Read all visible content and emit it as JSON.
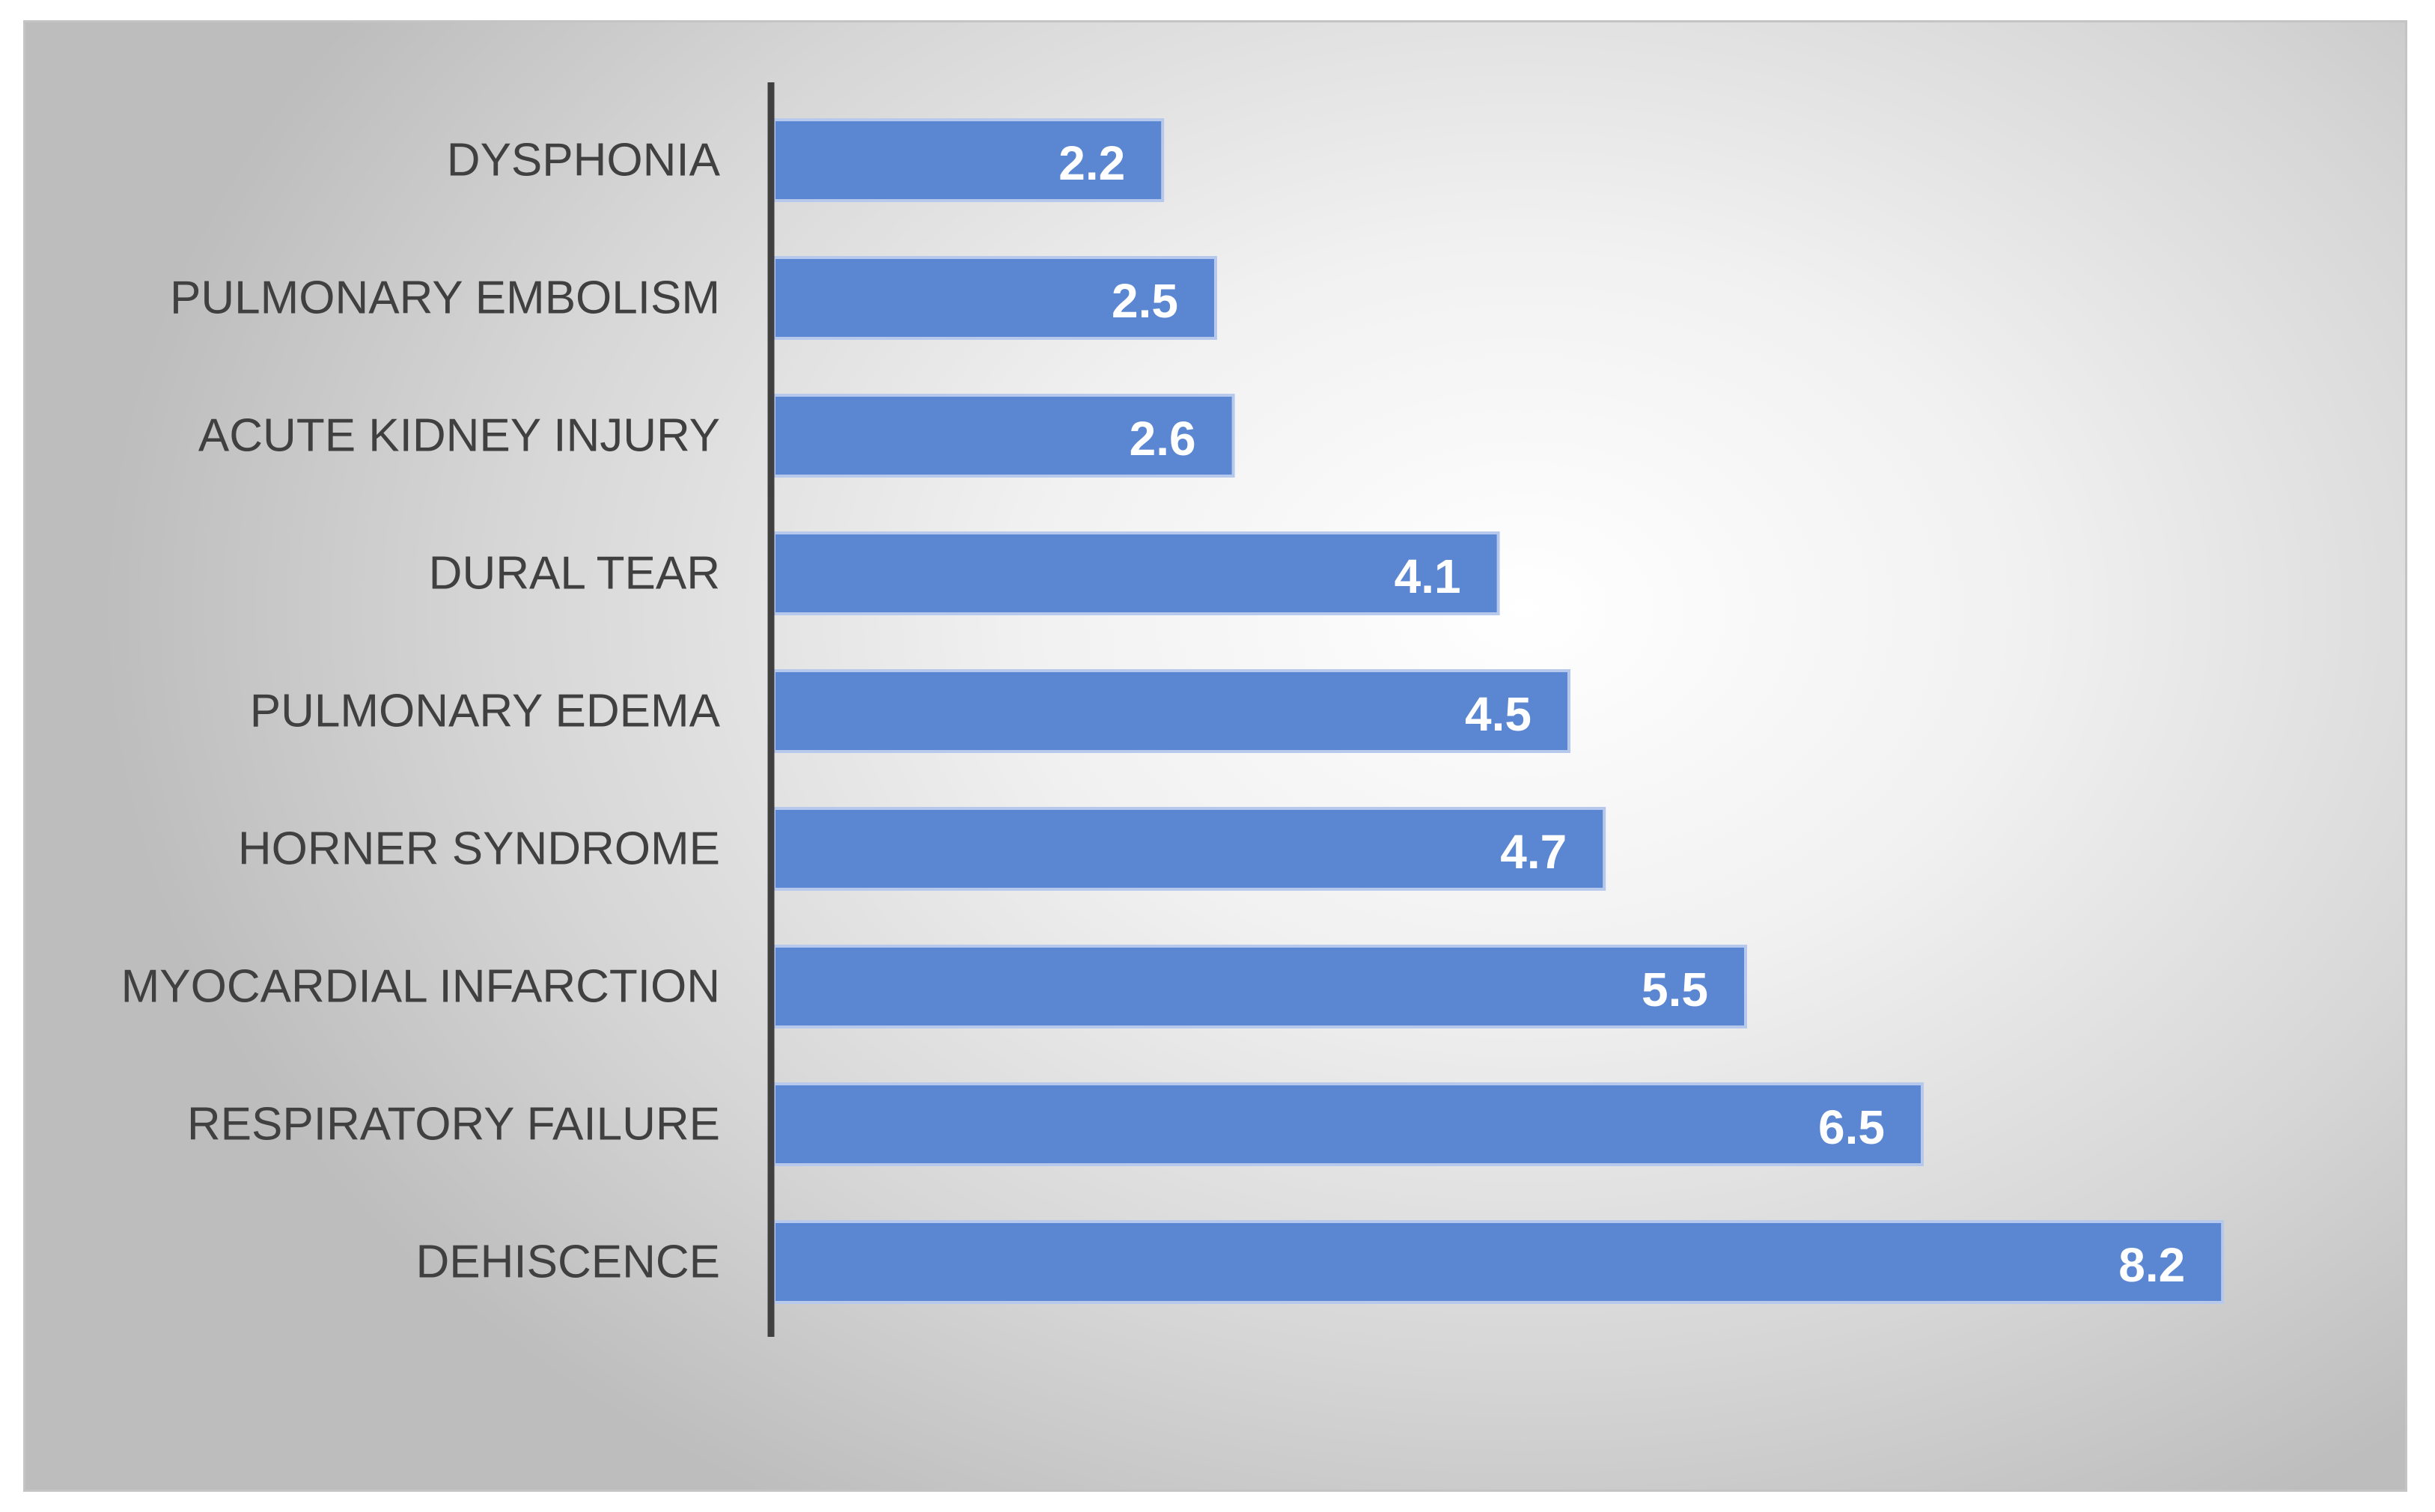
{
  "colors": {
    "bar": "#5b86d1",
    "bar_border": "#b6c9ec",
    "axis": "#404040",
    "value_text": "#ffffff",
    "category_text": "#404040"
  },
  "chart_data": {
    "type": "bar",
    "orientation": "horizontal",
    "title": "",
    "xlabel": "",
    "ylabel": "",
    "categories": [
      "DYSPHONIA",
      "PULMONARY EMBOLISM",
      "ACUTE KIDNEY INJURY",
      "DURAL TEAR",
      "PULMONARY EDEMA",
      "HORNER SYNDROME",
      "MYOCARDIAL INFARCTION",
      "RESPIRATORY FAILURE",
      "DEHISCENCE"
    ],
    "values": [
      2.2,
      2.5,
      2.6,
      4.1,
      4.5,
      4.7,
      5.5,
      6.5,
      8.2
    ],
    "value_labels": [
      "2.2",
      "2.5",
      "2.6",
      "4.1",
      "4.5",
      "4.7",
      "5.5",
      "6.5",
      "8.2"
    ],
    "xlim": [
      0,
      9
    ],
    "grid": false,
    "legend": "none",
    "data_labels": "inside-end"
  }
}
